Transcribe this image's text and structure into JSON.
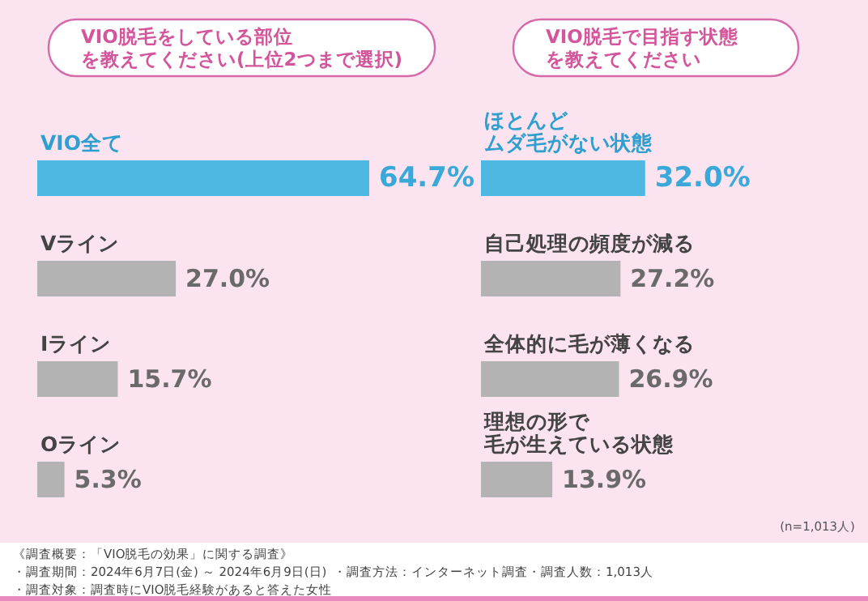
{
  "chart_data": [
    {
      "type": "bar",
      "orientation": "horizontal",
      "title": "VIO脱毛をしている部位を教えてください(上位2つまで選択)",
      "categories": [
        "VIO全て",
        "Vライン",
        "Iライン",
        "Oライン"
      ],
      "values": [
        64.7,
        27.0,
        15.7,
        5.3
      ],
      "colors": [
        "#4db8e2",
        "#b3b3b3",
        "#b3b3b3",
        "#b3b3b3"
      ],
      "value_labels": [
        "64.7%",
        "27.0%",
        "15.7%",
        "5.3%"
      ],
      "annotations": [
        "《調査概要：「VIO脱毛の効果」に関する調査》",
        "・調査期間：2024年6月7日(金) ～ 2024年6月9日(日)",
        "・調査対象：調査時にVIO脱毛経験があると答えた女性",
        "・調査方法：インターネット調査",
        "・調査人数：1,013人"
      ]
    },
    {
      "type": "bar",
      "orientation": "horizontal",
      "title": "VIO脱毛で目指す状態を教えてください",
      "categories": [
        "ほとんどムダ毛がない状態",
        "自己処理の頻度が減る",
        "全体的に毛が薄くなる",
        "理想の形で毛が生えている状態"
      ],
      "values": [
        32.0,
        27.2,
        26.9,
        13.9
      ],
      "colors": [
        "#4db8e2",
        "#b3b3b3",
        "#b3b3b3",
        "#b3b3b3"
      ],
      "value_labels": [
        "32.0%",
        "27.2%",
        "26.9%",
        "13.9%"
      ],
      "annotations": [
        "(n=1,013人)"
      ]
    }
  ]
}
